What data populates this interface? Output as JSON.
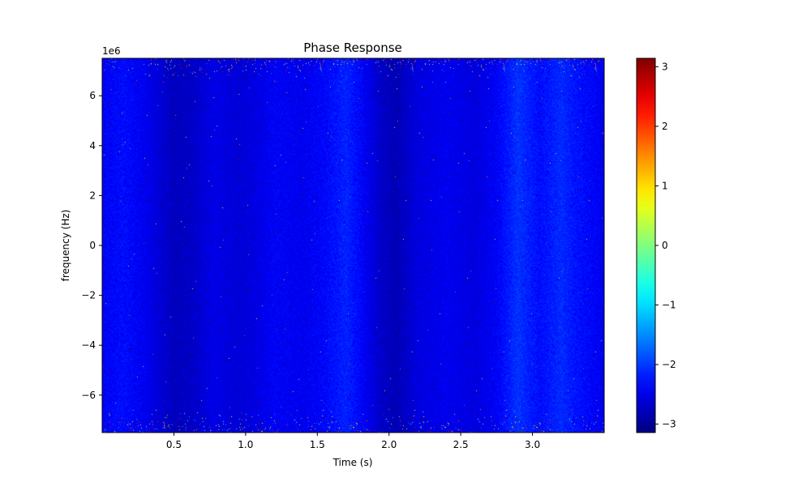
{
  "chart_data": {
    "type": "heatmap",
    "title": "Phase Response",
    "xlabel": "Time (s)",
    "ylabel": "frequency (Hz)",
    "y_scale_label": "1e6",
    "xlim": [
      0.0,
      3.5
    ],
    "ylim": [
      -7.5,
      7.5
    ],
    "x_ticks": [
      0.5,
      1.0,
      1.5,
      2.0,
      2.5,
      3.0
    ],
    "x_tick_labels": [
      "0.5",
      "1.0",
      "1.5",
      "2.0",
      "2.5",
      "3.0"
    ],
    "y_ticks": [
      -6,
      -4,
      -2,
      0,
      2,
      4,
      6
    ],
    "y_tick_labels": [
      "−6",
      "−4",
      "−2",
      "0",
      "2",
      "4",
      "6"
    ],
    "colormap": "jet",
    "colorbar": {
      "range": [
        -3.14159,
        3.14159
      ],
      "ticks": [
        -3,
        -2,
        -1,
        0,
        1,
        2,
        3
      ],
      "tick_labels": [
        "−3",
        "−2",
        "−1",
        "0",
        "1",
        "2",
        "3"
      ]
    },
    "typical_value": -2.4,
    "time_profile": [
      {
        "t": 0.0,
        "v": -2.4
      },
      {
        "t": 0.15,
        "v": -2.3
      },
      {
        "t": 0.3,
        "v": -2.45
      },
      {
        "t": 0.5,
        "v": -2.75
      },
      {
        "t": 0.62,
        "v": -2.7
      },
      {
        "t": 0.78,
        "v": -2.5
      },
      {
        "t": 0.95,
        "v": -2.6
      },
      {
        "t": 1.05,
        "v": -2.55
      },
      {
        "t": 1.2,
        "v": -2.4
      },
      {
        "t": 1.4,
        "v": -2.45
      },
      {
        "t": 1.55,
        "v": -2.35
      },
      {
        "t": 1.7,
        "v": -2.15
      },
      {
        "t": 1.8,
        "v": -2.35
      },
      {
        "t": 1.95,
        "v": -2.7
      },
      {
        "t": 2.05,
        "v": -2.8
      },
      {
        "t": 2.2,
        "v": -2.55
      },
      {
        "t": 2.4,
        "v": -2.45
      },
      {
        "t": 2.6,
        "v": -2.55
      },
      {
        "t": 2.75,
        "v": -2.4
      },
      {
        "t": 2.9,
        "v": -2.05
      },
      {
        "t": 3.05,
        "v": -2.3
      },
      {
        "t": 3.2,
        "v": -2.1
      },
      {
        "t": 3.3,
        "v": -2.25
      },
      {
        "t": 3.5,
        "v": -2.45
      }
    ]
  }
}
